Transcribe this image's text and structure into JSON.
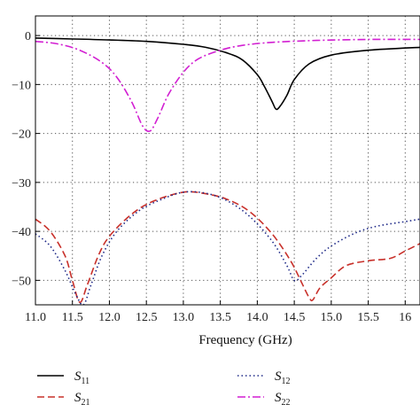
{
  "chart_data": {
    "type": "line",
    "xlabel": "Frequency (GHz)",
    "ylabel": "",
    "xlim": [
      11.0,
      16.2
    ],
    "ylim": [
      -55,
      4
    ],
    "x_ticks": [
      11.0,
      11.5,
      12.0,
      12.5,
      13.0,
      13.5,
      14.0,
      14.5,
      15.0,
      15.5,
      16.0
    ],
    "x_tick_labels": [
      "11.0",
      "11.5",
      "12.0",
      "12.5",
      "13.0",
      "13.5",
      "14.0",
      "14.5",
      "15.0",
      "15.5",
      "16"
    ],
    "y_ticks": [
      0,
      -10,
      -20,
      -30,
      -40,
      -50
    ],
    "y_tick_labels": [
      "0",
      "−10",
      "−20",
      "−30",
      "−40",
      "−50"
    ],
    "grid": true,
    "legend_placement": "bottom",
    "series": [
      {
        "name": "S11",
        "name_main": "S",
        "name_sub": "11",
        "color": "#000000",
        "dash": "solid",
        "x": [
          11.0,
          11.5,
          12.0,
          12.5,
          13.0,
          13.3,
          13.6,
          13.8,
          14.0,
          14.1,
          14.2,
          14.25,
          14.3,
          14.4,
          14.5,
          14.7,
          15.0,
          15.5,
          16.2
        ],
        "y": [
          -0.5,
          -0.7,
          -0.9,
          -1.2,
          -1.8,
          -2.4,
          -3.6,
          -5.0,
          -8.0,
          -10.5,
          -13.5,
          -15.0,
          -14.6,
          -12.2,
          -9.0,
          -5.8,
          -4.0,
          -3.0,
          -2.4
        ]
      },
      {
        "name": "S21",
        "name_main": "S",
        "name_sub": "21",
        "color": "#c8302a",
        "dash": "dashed",
        "x": [
          11.0,
          11.2,
          11.4,
          11.5,
          11.6,
          11.7,
          11.85,
          12.0,
          12.3,
          12.6,
          13.0,
          13.3,
          13.6,
          13.9,
          14.2,
          14.45,
          14.6,
          14.7,
          14.75,
          14.85,
          15.0,
          15.2,
          15.5,
          15.8,
          16.0,
          16.2
        ],
        "y": [
          -37.5,
          -40,
          -45,
          -50,
          -54.5,
          -51,
          -45,
          -41,
          -36.5,
          -33.8,
          -32,
          -32.3,
          -33.5,
          -36,
          -40.5,
          -46,
          -50.5,
          -53.5,
          -54,
          -51.5,
          -49.5,
          -47,
          -46,
          -45.5,
          -44,
          -42.5
        ]
      },
      {
        "name": "S12",
        "name_main": "S",
        "name_sub": "12",
        "color": "#1f2a88",
        "dash": "dotted",
        "x": [
          11.0,
          11.2,
          11.4,
          11.55,
          11.65,
          11.75,
          11.9,
          12.1,
          12.4,
          12.7,
          13.0,
          13.3,
          13.6,
          13.9,
          14.2,
          14.4,
          14.5,
          14.6,
          14.8,
          15.0,
          15.3,
          15.6,
          16.0,
          16.2
        ],
        "y": [
          -40.5,
          -43,
          -48,
          -53,
          -55,
          -51,
          -45,
          -40,
          -35.8,
          -33.5,
          -32,
          -32.2,
          -33.8,
          -37,
          -42,
          -47,
          -50,
          -49,
          -45.5,
          -43,
          -40.5,
          -39,
          -38,
          -37.5
        ]
      },
      {
        "name": "S22",
        "name_main": "S",
        "name_sub": "22",
        "color": "#d21fd2",
        "dash": "dashdot",
        "x": [
          11.0,
          11.3,
          11.6,
          11.9,
          12.1,
          12.3,
          12.45,
          12.55,
          12.65,
          12.8,
          13.0,
          13.2,
          13.5,
          13.8,
          14.2,
          14.8,
          15.5,
          16.2
        ],
        "y": [
          -1.2,
          -1.7,
          -3.0,
          -5.5,
          -8.5,
          -13.5,
          -18.5,
          -19.5,
          -17.0,
          -12.0,
          -7.5,
          -4.8,
          -3.0,
          -2.0,
          -1.4,
          -1.0,
          -0.8,
          -0.8
        ]
      }
    ]
  }
}
